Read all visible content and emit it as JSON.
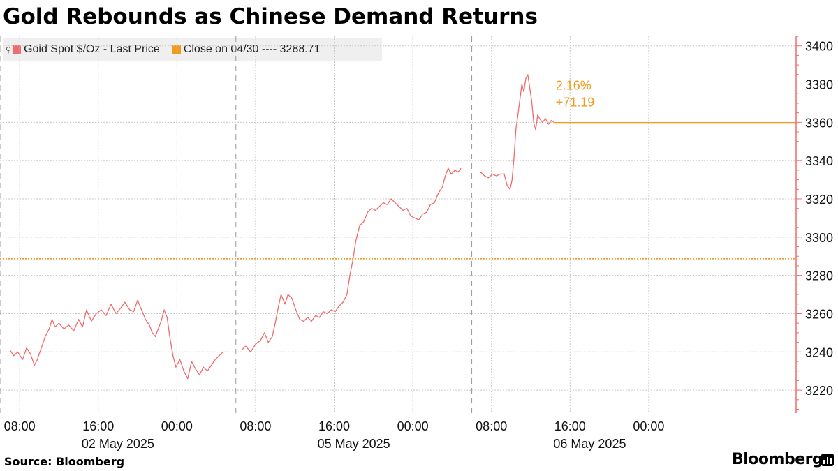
{
  "title": "Gold Rebounds as Chinese Demand Returns",
  "legend": {
    "series_label": "Gold Spot $/Oz - Last Price",
    "reference_label": "Close on 04/30 ---- 3288.71"
  },
  "annotation": {
    "pct": "2.16%",
    "change": "+71.19"
  },
  "source": "Source: Bloomberg",
  "brand": "Bloomberg",
  "colors": {
    "series": "#f06b6b",
    "reference": "#f29a1b",
    "axis": "#f06b6b",
    "grid": "#c8c8c8"
  },
  "chart_data": {
    "type": "line",
    "title": "Gold Rebounds as Chinese Demand Returns",
    "x_unit": "hours since 00:00 on 02 May 2025 (trading hours, weekend omitted)",
    "x_range": [
      6.0,
      87.0
    ],
    "ylim": [
      3208,
      3405
    ],
    "y_ticks": [
      3220,
      3240,
      3260,
      3280,
      3300,
      3320,
      3340,
      3360,
      3380,
      3400
    ],
    "x_tick_labels": [
      {
        "x": 8,
        "label": "08:00"
      },
      {
        "x": 16,
        "label": "16:00"
      },
      {
        "x": 24,
        "label": "00:00"
      },
      {
        "x": 32,
        "label": "08:00"
      },
      {
        "x": 40,
        "label": "16:00"
      },
      {
        "x": 48,
        "label": "00:00"
      },
      {
        "x": 56,
        "label": "08:00"
      },
      {
        "x": 64,
        "label": "16:00"
      },
      {
        "x": 72,
        "label": "00:00"
      }
    ],
    "date_labels": [
      {
        "x": 18,
        "label": "02 May 2025"
      },
      {
        "x": 42,
        "label": "05 May 2025"
      },
      {
        "x": 66,
        "label": "06 May 2025"
      }
    ],
    "session_breaks": [
      6.0,
      30.0,
      54.0
    ],
    "reference_line": {
      "name": "Close on 04/30",
      "value": 3288.71
    },
    "last_value": 3359.9,
    "series": [
      {
        "name": "Gold Spot $/Oz - Last Price",
        "points": [
          [
            7.0,
            3241
          ],
          [
            7.4,
            3238
          ],
          [
            7.8,
            3240
          ],
          [
            8.3,
            3236
          ],
          [
            8.7,
            3242
          ],
          [
            9.1,
            3239
          ],
          [
            9.5,
            3233
          ],
          [
            9.8,
            3236
          ],
          [
            10.2,
            3242
          ],
          [
            10.6,
            3248
          ],
          [
            11.0,
            3252
          ],
          [
            11.3,
            3257
          ],
          [
            11.6,
            3253
          ],
          [
            12.0,
            3255
          ],
          [
            12.5,
            3252
          ],
          [
            13.0,
            3254
          ],
          [
            13.5,
            3251
          ],
          [
            14.0,
            3257
          ],
          [
            14.4,
            3253
          ],
          [
            14.8,
            3262
          ],
          [
            15.3,
            3256
          ],
          [
            15.8,
            3260
          ],
          [
            16.3,
            3262
          ],
          [
            16.8,
            3259
          ],
          [
            17.3,
            3265
          ],
          [
            17.8,
            3260
          ],
          [
            18.3,
            3263
          ],
          [
            18.7,
            3266
          ],
          [
            19.2,
            3262
          ],
          [
            19.6,
            3261
          ],
          [
            20.0,
            3267
          ],
          [
            20.4,
            3262
          ],
          [
            20.8,
            3257
          ],
          [
            21.2,
            3254
          ],
          [
            21.5,
            3250
          ],
          [
            21.8,
            3248
          ],
          [
            22.1,
            3252
          ],
          [
            22.4,
            3256
          ],
          [
            22.7,
            3262
          ],
          [
            23.0,
            3258
          ],
          [
            23.3,
            3247
          ],
          [
            23.6,
            3238
          ],
          [
            23.9,
            3232
          ],
          [
            24.3,
            3236
          ],
          [
            24.7,
            3230
          ],
          [
            25.1,
            3226
          ],
          [
            25.5,
            3235
          ],
          [
            25.9,
            3231
          ],
          [
            26.3,
            3228
          ],
          [
            26.7,
            3232
          ],
          [
            27.1,
            3230
          ],
          [
            27.5,
            3233
          ],
          [
            27.9,
            3236
          ],
          [
            28.3,
            3238
          ],
          [
            28.7,
            3240
          ],
          [
            30.6,
            3241
          ],
          [
            31.0,
            3243
          ],
          [
            31.5,
            3240
          ],
          [
            32.0,
            3244
          ],
          [
            32.5,
            3246
          ],
          [
            32.9,
            3250
          ],
          [
            33.3,
            3245
          ],
          [
            33.7,
            3248
          ],
          [
            34.0,
            3255
          ],
          [
            34.3,
            3263
          ],
          [
            34.6,
            3270
          ],
          [
            35.0,
            3265
          ],
          [
            35.3,
            3270
          ],
          [
            35.7,
            3268
          ],
          [
            36.1,
            3262
          ],
          [
            36.5,
            3257
          ],
          [
            36.9,
            3256
          ],
          [
            37.3,
            3258
          ],
          [
            37.7,
            3256
          ],
          [
            38.1,
            3259
          ],
          [
            38.5,
            3258
          ],
          [
            38.9,
            3261
          ],
          [
            39.3,
            3260
          ],
          [
            39.7,
            3262
          ],
          [
            40.1,
            3261
          ],
          [
            40.5,
            3264
          ],
          [
            40.9,
            3266
          ],
          [
            41.3,
            3270
          ],
          [
            41.6,
            3280
          ],
          [
            41.9,
            3288
          ],
          [
            42.2,
            3298
          ],
          [
            42.6,
            3306
          ],
          [
            43.0,
            3308
          ],
          [
            43.4,
            3313
          ],
          [
            43.8,
            3315
          ],
          [
            44.2,
            3314
          ],
          [
            44.6,
            3316
          ],
          [
            45.0,
            3318
          ],
          [
            45.4,
            3317
          ],
          [
            45.8,
            3320
          ],
          [
            46.2,
            3318
          ],
          [
            46.6,
            3316
          ],
          [
            47.0,
            3314
          ],
          [
            47.4,
            3315
          ],
          [
            47.8,
            3311
          ],
          [
            48.2,
            3310
          ],
          [
            48.6,
            3309
          ],
          [
            49.0,
            3312
          ],
          [
            49.4,
            3313
          ],
          [
            49.8,
            3317
          ],
          [
            50.2,
            3318
          ],
          [
            50.6,
            3323
          ],
          [
            51.0,
            3326
          ],
          [
            51.3,
            3332
          ],
          [
            51.6,
            3336
          ],
          [
            51.9,
            3333
          ],
          [
            52.3,
            3335
          ],
          [
            52.6,
            3334
          ],
          [
            52.9,
            3336
          ],
          [
            54.9,
            3334
          ],
          [
            55.3,
            3332
          ],
          [
            55.7,
            3331
          ],
          [
            56.1,
            3333
          ],
          [
            56.5,
            3332
          ],
          [
            56.9,
            3333
          ],
          [
            57.3,
            3333
          ],
          [
            57.6,
            3327
          ],
          [
            57.9,
            3325
          ],
          [
            58.1,
            3330
          ],
          [
            58.3,
            3342
          ],
          [
            58.5,
            3357
          ],
          [
            58.7,
            3364
          ],
          [
            58.9,
            3372
          ],
          [
            59.1,
            3380
          ],
          [
            59.3,
            3376
          ],
          [
            59.5,
            3383
          ],
          [
            59.7,
            3385
          ],
          [
            59.9,
            3378
          ],
          [
            60.1,
            3371
          ],
          [
            60.3,
            3360
          ],
          [
            60.5,
            3356
          ],
          [
            60.7,
            3364
          ],
          [
            60.9,
            3362
          ],
          [
            61.2,
            3360
          ],
          [
            61.5,
            3362
          ],
          [
            61.8,
            3359
          ],
          [
            62.1,
            3361
          ],
          [
            62.4,
            3359.9
          ]
        ]
      }
    ]
  }
}
